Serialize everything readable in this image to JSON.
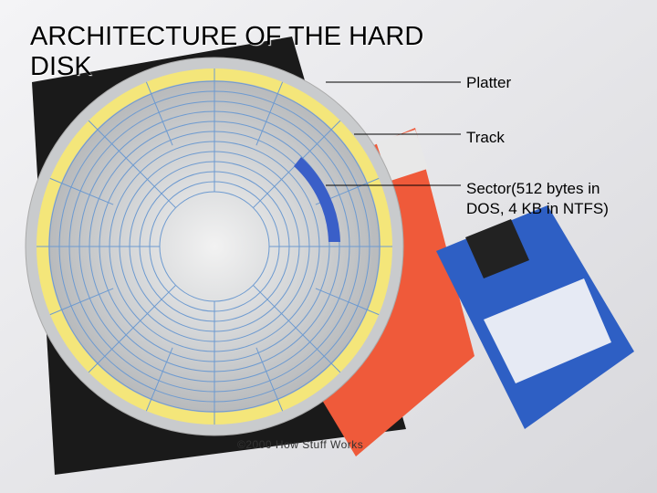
{
  "header": {
    "title": "ARCHITECTURE OF THE HARD DISK"
  },
  "labels": [
    "Platter",
    "Track",
    "Sector(512 bytes in DOS, 4 KB in NTFS)"
  ],
  "credit": "©2000 How Stuff Works"
}
